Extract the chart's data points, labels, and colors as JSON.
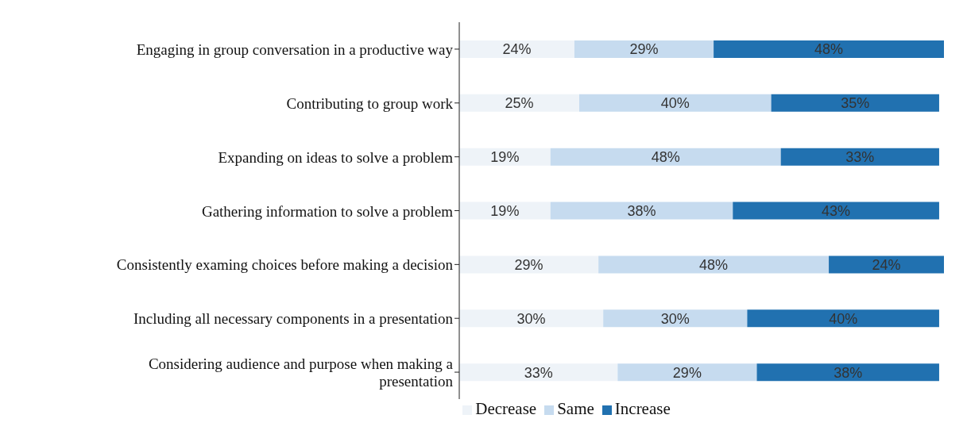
{
  "chart_data": {
    "type": "bar",
    "orientation": "horizontal",
    "stacked": true,
    "categories": [
      "Engaging in group conversation in a productive way",
      "Contributing to group work",
      "Expanding on ideas to solve a problem",
      "Gathering information to solve a problem",
      "Consistently examing choices before making a decision",
      "Including all necessary components in a presentation",
      "Considering audience and purpose when making a presentation"
    ],
    "series": [
      {
        "name": "Decrease",
        "color": "#eef3f8",
        "values": [
          24,
          25,
          19,
          19,
          29,
          30,
          33
        ],
        "value_labels": [
          "24%",
          "25%",
          "19%",
          "19%",
          "29%",
          "30%",
          "33%"
        ]
      },
      {
        "name": "Same",
        "color": "#c6dbef",
        "values": [
          29,
          40,
          48,
          38,
          48,
          30,
          29
        ],
        "value_labels": [
          "29%",
          "40%",
          "48%",
          "38%",
          "48%",
          "30%",
          "29%"
        ]
      },
      {
        "name": "Increase",
        "color": "#2171b0",
        "values": [
          48,
          35,
          33,
          43,
          24,
          40,
          38
        ],
        "value_labels": [
          "48%",
          "35%",
          "33%",
          "43%",
          "24%",
          "40%",
          "38%"
        ]
      }
    ],
    "tick_labels": "y",
    "legend": "bottom"
  }
}
